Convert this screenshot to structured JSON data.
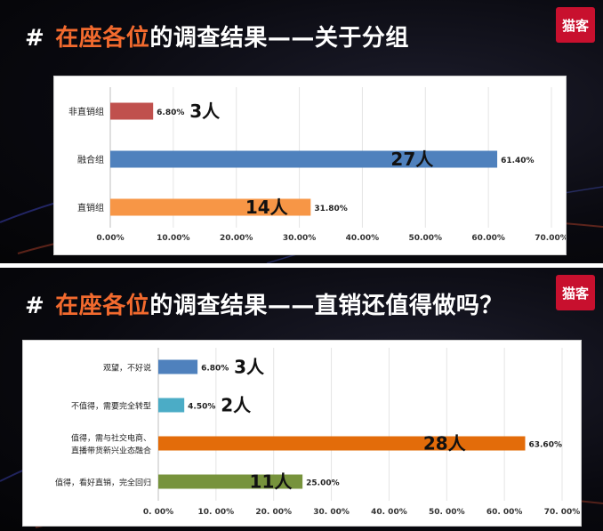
{
  "slides": [
    {
      "title_prefix": "#",
      "title_highlight": "在座各位",
      "title_rest": "的调查结果——关于分组",
      "logo_text": "猫客"
    },
    {
      "title_prefix": "#",
      "title_highlight": "在座各位",
      "title_rest": "的调查结果——直销还值得做吗？",
      "logo_text": "猫客"
    }
  ],
  "colors": {
    "accent": "#f26a2e",
    "logo": "#c8102e"
  },
  "chart_data": [
    {
      "type": "bar",
      "orientation": "horizontal",
      "categories": [
        "非直销组",
        "融合组",
        "直销组"
      ],
      "values": [
        6.8,
        61.4,
        31.8
      ],
      "value_labels": [
        "6.80%",
        "61.40%",
        "31.80%"
      ],
      "counts": [
        "3人",
        "27人",
        "14人"
      ],
      "colors": [
        "#c0504d",
        "#4f81bd",
        "#f79646"
      ],
      "xlim": [
        0,
        70
      ],
      "xticks": [
        "0.00%",
        "10.00%",
        "20.00%",
        "30.00%",
        "40.00%",
        "50.00%",
        "60.00%",
        "70.00%"
      ],
      "grid": true
    },
    {
      "type": "bar",
      "orientation": "horizontal",
      "categories": [
        [
          "观望，不好说"
        ],
        [
          "不值得，需要完全转型"
        ],
        [
          "值得，需与社交电商、",
          "直播带货新兴业态融合"
        ],
        [
          "值得，看好直销，完全回归"
        ]
      ],
      "values": [
        6.8,
        4.5,
        63.6,
        25.0
      ],
      "value_labels": [
        "6.80%",
        "4.50%",
        "63.60%",
        "25.00%"
      ],
      "counts": [
        "3人",
        "2人",
        "28人",
        "11人"
      ],
      "colors": [
        "#4f81bd",
        "#4bacc6",
        "#e36c0a",
        "#77933c"
      ],
      "xlim": [
        0,
        70
      ],
      "xticks": [
        "0. 00%",
        "10. 00%",
        "20. 00%",
        "30. 00%",
        "40. 00%",
        "50. 00%",
        "60. 00%",
        "70. 00%"
      ],
      "grid": true
    }
  ]
}
